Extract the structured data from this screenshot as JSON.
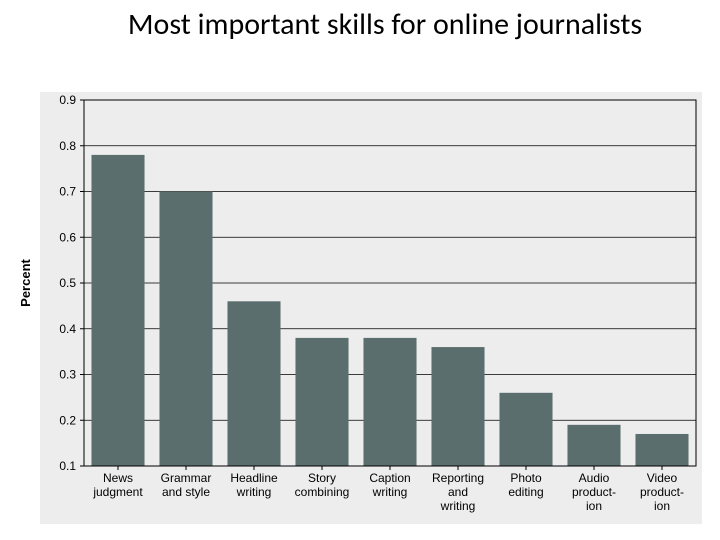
{
  "title": "Most important skills for online journalists",
  "chart": {
    "type": "bar",
    "ylabel": "Percent",
    "ylim": [
      0.1,
      0.9
    ],
    "ytick_step": 0.1,
    "categories": [
      [
        "News",
        "judgment"
      ],
      [
        "Grammar",
        "and style"
      ],
      [
        "Headline",
        "writing"
      ],
      [
        "Story",
        "combining"
      ],
      [
        "Caption",
        "writing"
      ],
      [
        "Reporting",
        "and",
        "writing"
      ],
      [
        "Photo",
        "editing"
      ],
      [
        "Audio",
        "product-",
        "ion"
      ],
      [
        "Video",
        "product-",
        "ion"
      ]
    ],
    "values": [
      0.78,
      0.7,
      0.46,
      0.38,
      0.38,
      0.36,
      0.26,
      0.19,
      0.17
    ],
    "bar_color": "#5b6e6e",
    "plot_background": "#ededed",
    "outer_background": "#ededed",
    "grid_color": "#000000",
    "axis_color": "#000000",
    "bar_width_ratio": 0.78,
    "label_fontsize": 12,
    "ylabel_fontsize": 13,
    "tick_fontsize": 12
  }
}
